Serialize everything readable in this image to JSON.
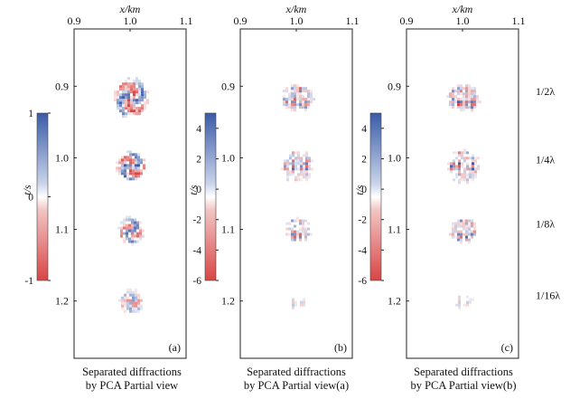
{
  "figure": {
    "x_axis_label": "x/km",
    "y_axis_label": "t/s",
    "x_ticks": [
      "0.9",
      "1.0",
      "1.1"
    ],
    "x_tick_values": [
      0.9,
      1.0,
      1.1
    ],
    "y_ticks": [
      "0.9",
      "1.0",
      "1.1",
      "1.2"
    ],
    "y_tick_values": [
      0.9,
      1.0,
      1.1,
      1.2
    ],
    "x_range_km": [
      0.9,
      1.1
    ],
    "t_range_s": [
      0.82,
      1.28
    ],
    "colormap": {
      "positive": "#3a5ba8",
      "zero": "#ffffff",
      "negative": "#d94545"
    },
    "panels": [
      {
        "letter": "(a)",
        "caption_line1": "Separated diffractions",
        "caption_line2": "by PCA Partial view",
        "colorbar_ticks": [
          "1",
          "0",
          "-1"
        ],
        "colorbar_range": [
          -1,
          1
        ]
      },
      {
        "letter": "(b)",
        "caption_line1": "Separated diffractions",
        "caption_line2": "by PCA Partial view(a)",
        "colorbar_ticks": [
          "4",
          "2",
          "0",
          "-2",
          "-4",
          "-6"
        ],
        "colorbar_range": [
          -6,
          5
        ]
      },
      {
        "letter": "(c)",
        "caption_line1": "Separated diffractions",
        "caption_line2": "by PCA Partial view(b)",
        "colorbar_ticks": [
          "4",
          "2",
          "0",
          "-2",
          "-4",
          "-6"
        ],
        "colorbar_range": [
          -6,
          5
        ]
      }
    ],
    "row_labels": [
      "1/2λ",
      "1/4λ",
      "1/8λ",
      "1/16λ"
    ],
    "blob_times_s": [
      0.915,
      1.01,
      1.1,
      1.2
    ]
  }
}
